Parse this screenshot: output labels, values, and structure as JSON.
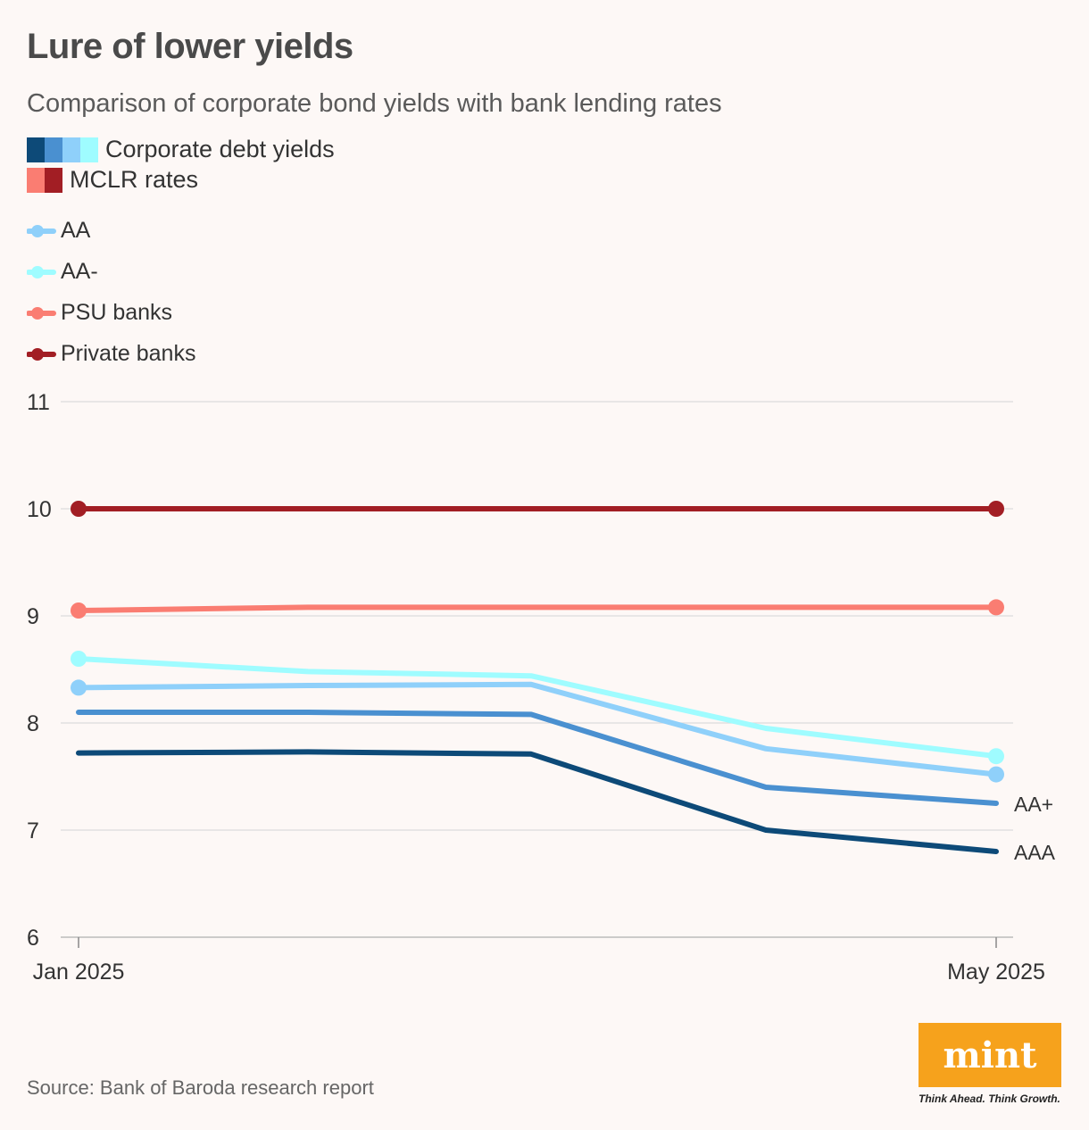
{
  "title": "Lure of lower yields",
  "subtitle": "Comparison of corporate bond yields with bank lending rates",
  "key": [
    {
      "label": "Corporate debt yields",
      "colors": [
        "#0d4a78",
        "#4a90d0",
        "#8fd0fa",
        "#9ffcff"
      ]
    },
    {
      "label": "MCLR rates",
      "colors": [
        "#fa7d72",
        "#a21e24"
      ]
    }
  ],
  "source": "Source: Bank of Baroda research report",
  "logo": {
    "text": "mint",
    "tagline": "Think Ahead. Think Growth."
  },
  "chart_data": {
    "type": "line",
    "x": [
      0,
      1,
      2,
      3,
      4
    ],
    "x_tick_labels": [
      "Jan 2025",
      "",
      "",
      "",
      "May 2025"
    ],
    "ylim": [
      6,
      11
    ],
    "yticks": [
      6,
      7,
      8,
      9,
      10,
      11
    ],
    "grid": true,
    "legend_position": "top-left",
    "series": [
      {
        "name": "AA",
        "color": "#8fd0fa",
        "values": [
          8.33,
          8.35,
          8.36,
          7.76,
          7.52
        ],
        "markers": "ends",
        "in_legend": true
      },
      {
        "name": "AA-",
        "color": "#9ffcff",
        "values": [
          8.6,
          8.48,
          8.44,
          7.95,
          7.69
        ],
        "markers": "ends",
        "in_legend": true
      },
      {
        "name": "PSU banks",
        "color": "#fa7d72",
        "values": [
          9.05,
          9.08,
          9.08,
          9.08,
          9.08
        ],
        "markers": "ends",
        "in_legend": true
      },
      {
        "name": "Private banks",
        "color": "#a21e24",
        "values": [
          10.0,
          10.0,
          10.0,
          10.0,
          10.0
        ],
        "markers": "ends",
        "in_legend": true
      },
      {
        "name": "AA+",
        "color": "#4a90d0",
        "values": [
          8.1,
          8.1,
          8.08,
          7.4,
          7.25
        ],
        "markers": "none",
        "in_legend": false,
        "end_label": "AA+"
      },
      {
        "name": "AAA",
        "color": "#0d4a78",
        "values": [
          7.72,
          7.73,
          7.71,
          7.0,
          6.8
        ],
        "markers": "none",
        "in_legend": false,
        "end_label": "AAA"
      }
    ]
  }
}
